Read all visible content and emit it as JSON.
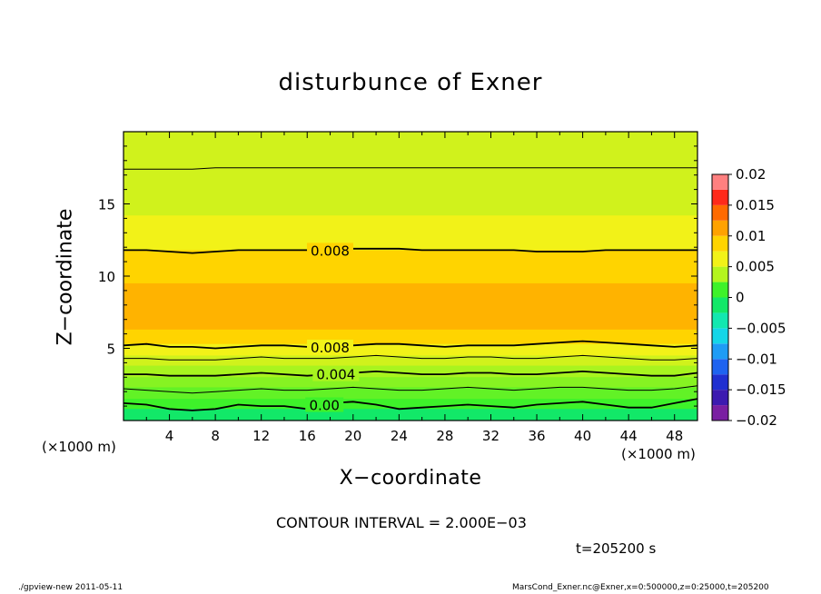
{
  "title": "disturbunce of Exner",
  "xlabel": "X−coordinate",
  "ylabel": "Z−coordinate",
  "x_unit": "(×1000 m)",
  "contour_note": "CONTOUR INTERVAL = 2.000E−03",
  "time_note": "t=205200 s",
  "footer_left": "./gpview-new   2011-05-11",
  "footer_right": "MarsCond_Exner.nc@Exner,x=0:500000,z=0:25000,t=205200",
  "chart_data": {
    "type": "heatmap",
    "title": "disturbunce of Exner",
    "xlabel": "X−coordinate",
    "ylabel": "Z−coordinate",
    "xlim": [
      0,
      50
    ],
    "ylim": [
      0,
      20
    ],
    "x_ticks": [
      4,
      8,
      12,
      16,
      20,
      24,
      28,
      32,
      36,
      40,
      44,
      48
    ],
    "y_ticks": [
      5,
      10,
      15
    ],
    "colorbar": {
      "ticks": [
        "0.02",
        "0.015",
        "0.01",
        "0.005",
        "0",
        "−0.005",
        "−0.01",
        "−0.015",
        "−0.02"
      ],
      "levels": [
        {
          "from": -0.02,
          "to": -0.0175,
          "color": "#7a1fa2"
        },
        {
          "from": -0.0175,
          "to": -0.015,
          "color": "#3d1ab0"
        },
        {
          "from": -0.015,
          "to": -0.0125,
          "color": "#1f2fd0"
        },
        {
          "from": -0.0125,
          "to": -0.01,
          "color": "#1e63f0"
        },
        {
          "from": -0.01,
          "to": -0.0075,
          "color": "#1e9cf5"
        },
        {
          "from": -0.0075,
          "to": -0.005,
          "color": "#14d6e8"
        },
        {
          "from": -0.005,
          "to": -0.0025,
          "color": "#12e8b0"
        },
        {
          "from": -0.0025,
          "to": 0,
          "color": "#12e868"
        },
        {
          "from": 0,
          "to": 0.0025,
          "color": "#3ef22a"
        },
        {
          "from": 0.0025,
          "to": 0.005,
          "color": "#b4f51e"
        },
        {
          "from": 0.005,
          "to": 0.0075,
          "color": "#f2f218"
        },
        {
          "from": 0.0075,
          "to": 0.01,
          "color": "#ffd400"
        },
        {
          "from": 0.01,
          "to": 0.0125,
          "color": "#ffa200"
        },
        {
          "from": 0.0125,
          "to": 0.015,
          "color": "#ff6a00"
        },
        {
          "from": 0.015,
          "to": 0.0175,
          "color": "#ff2a1a"
        },
        {
          "from": 0.0175,
          "to": 0.02,
          "color": "#ff8080"
        }
      ]
    },
    "bands": [
      {
        "z_top": 0.8,
        "color": "#12e868"
      },
      {
        "z_top": 1.5,
        "color": "#3ef22a"
      },
      {
        "z_top": 2.3,
        "color": "#62f226"
      },
      {
        "z_top": 3.0,
        "color": "#86f322"
      },
      {
        "z_top": 3.8,
        "color": "#a8f41f"
      },
      {
        "z_top": 4.5,
        "color": "#d0f21c"
      },
      {
        "z_top": 5.3,
        "color": "#f2f218"
      },
      {
        "z_top": 6.3,
        "color": "#ffd400"
      },
      {
        "z_top": 9.5,
        "color": "#ffb300"
      },
      {
        "z_top": 11.8,
        "color": "#ffd400"
      },
      {
        "z_top": 14.2,
        "color": "#f2f218"
      },
      {
        "z_top": 20.0,
        "color": "#d0f21c"
      }
    ],
    "contours": [
      {
        "label": "0.00",
        "label_x": 17.5,
        "z": [
          1.2,
          1.1,
          0.8,
          0.7,
          0.8,
          1.1,
          1.0,
          1.0,
          0.8,
          1.2,
          1.3,
          1.1,
          0.8,
          0.9,
          1.0,
          1.1,
          1.0,
          0.9,
          1.1,
          1.2,
          1.3,
          1.1,
          0.9,
          0.9,
          1.2,
          1.5
        ]
      },
      {
        "label": "",
        "label_x": null,
        "z": [
          2.2,
          2.1,
          2.0,
          1.9,
          2.0,
          2.1,
          2.2,
          2.1,
          2.1,
          2.2,
          2.3,
          2.2,
          2.1,
          2.1,
          2.2,
          2.3,
          2.2,
          2.1,
          2.2,
          2.3,
          2.3,
          2.2,
          2.1,
          2.1,
          2.2,
          2.4
        ]
      },
      {
        "label": "0.004",
        "label_x": 18.5,
        "z": [
          3.2,
          3.2,
          3.1,
          3.1,
          3.1,
          3.2,
          3.3,
          3.2,
          3.1,
          3.2,
          3.3,
          3.4,
          3.3,
          3.2,
          3.2,
          3.3,
          3.3,
          3.2,
          3.2,
          3.3,
          3.4,
          3.3,
          3.2,
          3.1,
          3.1,
          3.3
        ]
      },
      {
        "label": "",
        "label_x": null,
        "z": [
          4.3,
          4.3,
          4.2,
          4.2,
          4.2,
          4.3,
          4.4,
          4.3,
          4.3,
          4.3,
          4.4,
          4.5,
          4.4,
          4.3,
          4.3,
          4.4,
          4.4,
          4.3,
          4.3,
          4.4,
          4.5,
          4.4,
          4.3,
          4.2,
          4.2,
          4.3
        ]
      },
      {
        "label": "0.008",
        "label_x": 18.0,
        "z": [
          5.2,
          5.3,
          5.1,
          5.1,
          5.0,
          5.1,
          5.2,
          5.2,
          5.1,
          5.1,
          5.2,
          5.3,
          5.3,
          5.2,
          5.1,
          5.2,
          5.2,
          5.2,
          5.3,
          5.4,
          5.5,
          5.4,
          5.3,
          5.2,
          5.1,
          5.2
        ]
      },
      {
        "label": "0.008",
        "label_x": 18.0,
        "z": [
          11.8,
          11.8,
          11.7,
          11.6,
          11.7,
          11.8,
          11.8,
          11.8,
          11.8,
          11.8,
          11.9,
          11.9,
          11.9,
          11.8,
          11.8,
          11.8,
          11.8,
          11.8,
          11.7,
          11.7,
          11.7,
          11.8,
          11.8,
          11.8,
          11.8,
          11.8
        ]
      },
      {
        "label": "",
        "label_x": null,
        "z": [
          17.4,
          17.4,
          17.4,
          17.4,
          17.5,
          17.5,
          17.5,
          17.5,
          17.5,
          17.5,
          17.5,
          17.5,
          17.5,
          17.5,
          17.5,
          17.5,
          17.5,
          17.5,
          17.5,
          17.5,
          17.5,
          17.5,
          17.5,
          17.5,
          17.5,
          17.5
        ]
      }
    ]
  }
}
